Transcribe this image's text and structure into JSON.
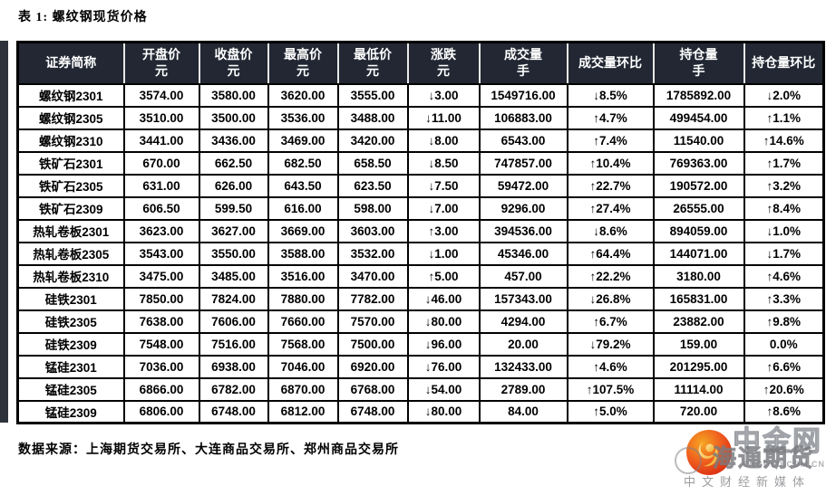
{
  "title": "表 1: 螺纹钢现货价格",
  "table": {
    "headers": [
      {
        "label": "证券简称",
        "unit": ""
      },
      {
        "label": "开盘价",
        "unit": "元"
      },
      {
        "label": "收盘价",
        "unit": "元"
      },
      {
        "label": "最高价",
        "unit": "元"
      },
      {
        "label": "最低价",
        "unit": "元"
      },
      {
        "label": "涨跌",
        "unit": "元"
      },
      {
        "label": "成交量",
        "unit": "手"
      },
      {
        "label": "成交量环比",
        "unit": ""
      },
      {
        "label": "持仓量",
        "unit": "手"
      },
      {
        "label": "持仓量环比",
        "unit": ""
      }
    ],
    "rows": [
      {
        "name": "螺纹钢2301",
        "open": "3574.00",
        "close": "3580.00",
        "high": "3620.00",
        "low": "3555.00",
        "chg": "3.00",
        "chg_dir": "down",
        "vol": "1549716.00",
        "vol_chg": "8.5%",
        "vol_chg_dir": "down",
        "oi": "1785892.00",
        "oi_chg": "2.0%",
        "oi_chg_dir": "down"
      },
      {
        "name": "螺纹钢2305",
        "open": "3510.00",
        "close": "3500.00",
        "high": "3536.00",
        "low": "3488.00",
        "chg": "11.00",
        "chg_dir": "down",
        "vol": "106883.00",
        "vol_chg": "4.7%",
        "vol_chg_dir": "up",
        "oi": "499454.00",
        "oi_chg": "1.1%",
        "oi_chg_dir": "up"
      },
      {
        "name": "螺纹钢2310",
        "open": "3441.00",
        "close": "3436.00",
        "high": "3469.00",
        "low": "3420.00",
        "chg": "8.00",
        "chg_dir": "down",
        "vol": "6543.00",
        "vol_chg": "7.4%",
        "vol_chg_dir": "up",
        "oi": "11540.00",
        "oi_chg": "14.6%",
        "oi_chg_dir": "up"
      },
      {
        "name": "铁矿石2301",
        "open": "670.00",
        "close": "662.50",
        "high": "682.50",
        "low": "658.50",
        "chg": "8.50",
        "chg_dir": "down",
        "vol": "747857.00",
        "vol_chg": "10.4%",
        "vol_chg_dir": "up",
        "oi": "769363.00",
        "oi_chg": "1.7%",
        "oi_chg_dir": "up"
      },
      {
        "name": "铁矿石2305",
        "open": "631.00",
        "close": "626.00",
        "high": "643.50",
        "low": "623.50",
        "chg": "7.50",
        "chg_dir": "down",
        "vol": "59472.00",
        "vol_chg": "22.7%",
        "vol_chg_dir": "up",
        "oi": "190572.00",
        "oi_chg": "3.2%",
        "oi_chg_dir": "up"
      },
      {
        "name": "铁矿石2309",
        "open": "606.50",
        "close": "599.50",
        "high": "616.00",
        "low": "598.00",
        "chg": "7.00",
        "chg_dir": "down",
        "vol": "9296.00",
        "vol_chg": "27.4%",
        "vol_chg_dir": "up",
        "oi": "26555.00",
        "oi_chg": "8.4%",
        "oi_chg_dir": "up"
      },
      {
        "name": "热轧卷板2301",
        "open": "3623.00",
        "close": "3627.00",
        "high": "3669.00",
        "low": "3603.00",
        "chg": "3.00",
        "chg_dir": "up",
        "vol": "394536.00",
        "vol_chg": "8.6%",
        "vol_chg_dir": "down",
        "oi": "894059.00",
        "oi_chg": "1.0%",
        "oi_chg_dir": "down"
      },
      {
        "name": "热轧卷板2305",
        "open": "3543.00",
        "close": "3550.00",
        "high": "3588.00",
        "low": "3532.00",
        "chg": "1.00",
        "chg_dir": "down",
        "vol": "45346.00",
        "vol_chg": "64.4%",
        "vol_chg_dir": "up",
        "oi": "144071.00",
        "oi_chg": "1.7%",
        "oi_chg_dir": "down"
      },
      {
        "name": "热轧卷板2310",
        "open": "3475.00",
        "close": "3485.00",
        "high": "3516.00",
        "low": "3470.00",
        "chg": "5.00",
        "chg_dir": "up",
        "vol": "457.00",
        "vol_chg": "22.2%",
        "vol_chg_dir": "up",
        "oi": "3180.00",
        "oi_chg": "4.6%",
        "oi_chg_dir": "up"
      },
      {
        "name": "硅铁2301",
        "open": "7850.00",
        "close": "7824.00",
        "high": "7880.00",
        "low": "7782.00",
        "chg": "46.00",
        "chg_dir": "down",
        "vol": "157343.00",
        "vol_chg": "26.8%",
        "vol_chg_dir": "down",
        "oi": "165831.00",
        "oi_chg": "3.3%",
        "oi_chg_dir": "up"
      },
      {
        "name": "硅铁2305",
        "open": "7638.00",
        "close": "7606.00",
        "high": "7660.00",
        "low": "7570.00",
        "chg": "80.00",
        "chg_dir": "down",
        "vol": "4294.00",
        "vol_chg": "6.7%",
        "vol_chg_dir": "up",
        "oi": "23882.00",
        "oi_chg": "9.8%",
        "oi_chg_dir": "up"
      },
      {
        "name": "硅铁2309",
        "open": "7548.00",
        "close": "7516.00",
        "high": "7568.00",
        "low": "7500.00",
        "chg": "96.00",
        "chg_dir": "down",
        "vol": "20.00",
        "vol_chg": "79.2%",
        "vol_chg_dir": "down",
        "oi": "159.00",
        "oi_chg": "0.0%",
        "oi_chg_dir": "flat"
      },
      {
        "name": "锰硅2301",
        "open": "7036.00",
        "close": "6938.00",
        "high": "7046.00",
        "low": "6920.00",
        "chg": "76.00",
        "chg_dir": "down",
        "vol": "132433.00",
        "vol_chg": "4.6%",
        "vol_chg_dir": "up",
        "oi": "201295.00",
        "oi_chg": "6.6%",
        "oi_chg_dir": "up"
      },
      {
        "name": "锰硅2305",
        "open": "6866.00",
        "close": "6782.00",
        "high": "6870.00",
        "low": "6768.00",
        "chg": "54.00",
        "chg_dir": "down",
        "vol": "2789.00",
        "vol_chg": "107.5%",
        "vol_chg_dir": "up",
        "oi": "11114.00",
        "oi_chg": "20.6%",
        "oi_chg_dir": "up"
      },
      {
        "name": "锰硅2309",
        "open": "6806.00",
        "close": "6748.00",
        "high": "6812.00",
        "low": "6748.00",
        "chg": "80.00",
        "chg_dir": "down",
        "vol": "84.00",
        "vol_chg": "5.0%",
        "vol_chg_dir": "up",
        "oi": "720.00",
        "oi_chg": "8.6%",
        "oi_chg_dir": "up"
      }
    ]
  },
  "footer": {
    "source": "数据来源：上海期货交易所、大连商品交易所、郑州商品交易所"
  },
  "logo": {
    "brand": "中金网",
    "domain": "CNGOLD.COM.CN",
    "tagline": "中文财经新媒体",
    "watermark": "海通期货"
  },
  "colors": {
    "up_red": "#ee1111",
    "down_green": "#00d83a",
    "header_bg": "#222733",
    "border": "#000000"
  },
  "glyphs": {
    "up_arrow": "↑",
    "down_arrow": "↓"
  }
}
